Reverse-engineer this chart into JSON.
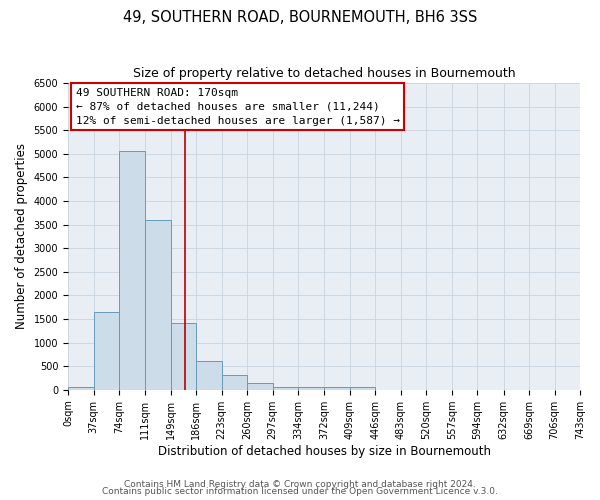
{
  "title": "49, SOUTHERN ROAD, BOURNEMOUTH, BH6 3SS",
  "subtitle": "Size of property relative to detached houses in Bournemouth",
  "xlabel": "Distribution of detached houses by size in Bournemouth",
  "ylabel": "Number of detached properties",
  "footer_lines": [
    "Contains HM Land Registry data © Crown copyright and database right 2024.",
    "Contains public sector information licensed under the Open Government Licence v.3.0."
  ],
  "bin_edges": [
    0,
    37,
    74,
    111,
    149,
    186,
    223,
    260,
    297,
    334,
    372,
    409,
    446,
    483,
    520,
    557,
    594,
    632,
    669,
    706,
    743
  ],
  "bin_counts": [
    50,
    1650,
    5050,
    3600,
    1420,
    610,
    310,
    150,
    50,
    50,
    50,
    50,
    0,
    0,
    0,
    0,
    0,
    0,
    0,
    0
  ],
  "bar_facecolor": "#ccdce8",
  "bar_edgecolor": "#6699bb",
  "grid_color": "#c8d4e0",
  "vline_x": 170,
  "vline_color": "#bb0000",
  "annotation_box_text": "49 SOUTHERN ROAD: 170sqm\n← 87% of detached houses are smaller (11,244)\n12% of semi-detached houses are larger (1,587) →",
  "annotation_box_edgecolor": "#cc0000",
  "ylim": [
    0,
    6500
  ],
  "yticks": [
    0,
    500,
    1000,
    1500,
    2000,
    2500,
    3000,
    3500,
    4000,
    4500,
    5000,
    5500,
    6000,
    6500
  ],
  "background_color": "#ffffff",
  "plot_bg_color": "#e8eef4",
  "title_fontsize": 10.5,
  "subtitle_fontsize": 9,
  "tick_label_fontsize": 7,
  "axis_label_fontsize": 8.5,
  "annotation_fontsize": 8,
  "footer_fontsize": 6.5
}
